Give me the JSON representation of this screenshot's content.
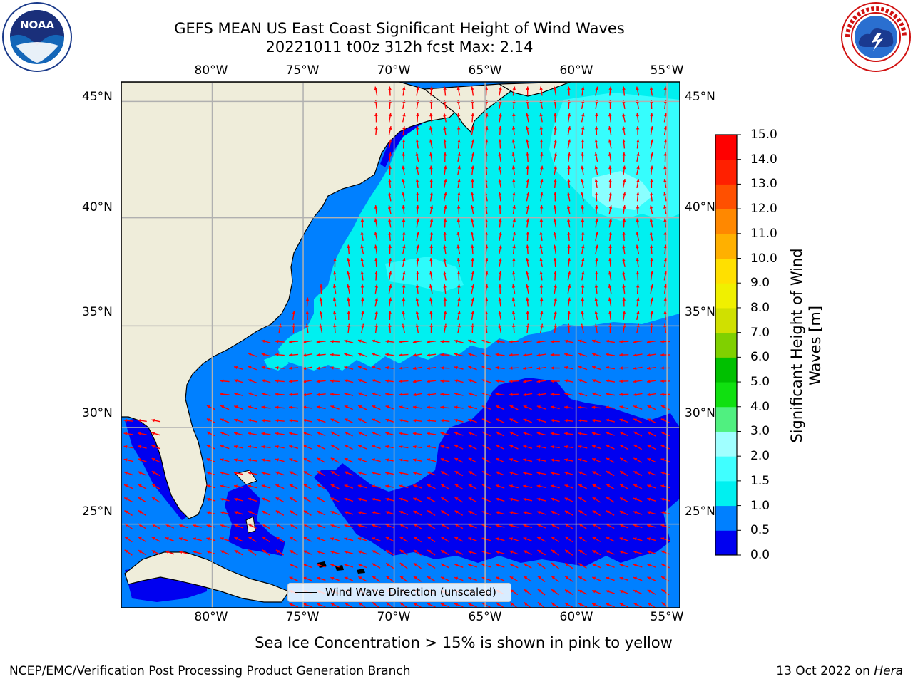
{
  "header": {
    "title_line1": "GEFS MEAN US East Coast Significant Height of Wind Waves",
    "title_line2": "20221011 t00z 312h fcst   Max: 2.14"
  },
  "logos": {
    "left": {
      "text": "NOAA",
      "icon": "noaa-logo-icon"
    },
    "right": {
      "text": "NATIONAL WEATHER SERVICE",
      "icon": "nws-logo-icon"
    }
  },
  "map": {
    "lon_labels": [
      "80°W",
      "75°W",
      "70°W",
      "65°W",
      "60°W",
      "55°W"
    ],
    "lat_labels": [
      "45°N",
      "40°N",
      "35°N",
      "30°N",
      "25°N"
    ],
    "lon_ticks": [
      -80,
      -75,
      -70,
      -65,
      -60,
      -55
    ],
    "lat_ticks": [
      45,
      40,
      35,
      30,
      25
    ],
    "extent": {
      "lon_min": -85,
      "lon_max": -54.3,
      "lat_min": 20.5,
      "lat_max": 45.8
    },
    "legend_label": "Wind Wave Direction (unscaled)",
    "arrow_color": "#ff0000",
    "land_color": "#efedda",
    "grid_color": "#b0b0b0"
  },
  "colorbar": {
    "title_line1": "Significant Height of Wind",
    "title_line2": "Waves [m]",
    "tick_labels": [
      "0.0",
      "0.5",
      "1.0",
      "1.5",
      "2.0",
      "3.0",
      "4.0",
      "5.0",
      "6.0",
      "7.0",
      "8.0",
      "9.0",
      "10.0",
      "11.0",
      "12.0",
      "13.0",
      "14.0",
      "15.0"
    ],
    "levels": [
      0.0,
      0.5,
      1.0,
      1.5,
      2.0,
      3.0,
      4.0,
      5.0,
      6.0,
      7.0,
      8.0,
      9.0,
      10.0,
      11.0,
      12.0,
      13.0,
      14.0,
      15.0
    ],
    "colors": [
      "#0000f0",
      "#0080ff",
      "#00f0f0",
      "#40ffff",
      "#a0ffff",
      "#50f080",
      "#10e010",
      "#00c000",
      "#80d000",
      "#d0e000",
      "#f0f000",
      "#ffe000",
      "#ffb000",
      "#ff8800",
      "#ff5000",
      "#ff2000",
      "#ff0000"
    ]
  },
  "footer": {
    "note": "Sea Ice Concentration > 15% is shown in pink to yellow",
    "left": "NCEP/EMC/Verification Post Processing Product Generation Branch",
    "date": "13 Oct 2022 on ",
    "machine": "Hera"
  }
}
